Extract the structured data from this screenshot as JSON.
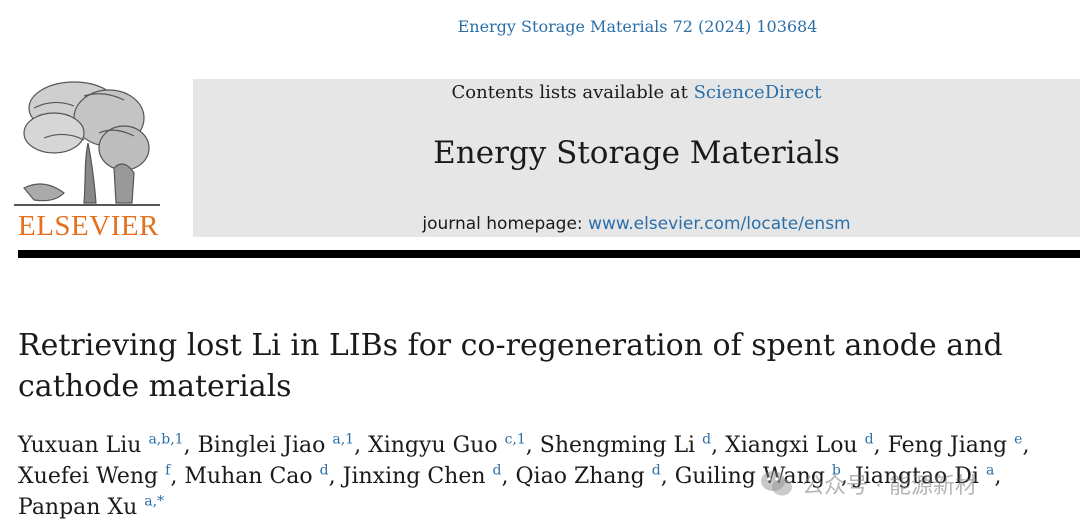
{
  "header": {
    "citation": "Energy Storage Materials 72 (2024) 103684"
  },
  "publisher": {
    "name": "ELSEVIER",
    "logo_icon": "elsevier-tree-icon"
  },
  "banner": {
    "contents_prefix": "Contents lists available at ",
    "contents_link": "ScienceDirect",
    "journal_title": "Energy Storage Materials",
    "homepage_prefix": "journal homepage: ",
    "homepage_link": "www.elsevier.com/locate/ensm"
  },
  "article": {
    "title_line1": "Retrieving lost Li in LIBs for co-regeneration of spent anode and",
    "title_line2": "cathode materials",
    "authors": [
      {
        "name": "Yuxuan Liu",
        "aff": "a,b,1",
        "sep": ", "
      },
      {
        "name": "Binglei Jiao",
        "aff": "a,1",
        "sep": ", "
      },
      {
        "name": "Xingyu Guo",
        "aff": "c,1",
        "sep": ", "
      },
      {
        "name": "Shengming Li",
        "aff": "d",
        "sep": ", "
      },
      {
        "name": "Xiangxi Lou",
        "aff": "d",
        "sep": ", "
      },
      {
        "name": "Feng Jiang",
        "aff": "e",
        "sep": ","
      },
      {
        "name": "Xuefei Weng",
        "aff": "f",
        "sep": ", "
      },
      {
        "name": "Muhan Cao",
        "aff": "d",
        "sep": ", "
      },
      {
        "name": "Jinxing Chen",
        "aff": "d",
        "sep": ", "
      },
      {
        "name": "Qiao Zhang",
        "aff": "d",
        "sep": ", "
      },
      {
        "name": "Guiling Wang",
        "aff": "b",
        "sep": ", "
      },
      {
        "name": "Jiangtao Di",
        "aff": "a",
        "sep": ","
      },
      {
        "name": "Panpan Xu",
        "aff": "a,*",
        "sep": ""
      }
    ]
  },
  "watermark": {
    "text": "公众号 · 能源新材",
    "icon": "wechat-icon"
  },
  "colors": {
    "link": "#2a6fa8",
    "elsevier_orange": "#e4701e",
    "banner_gray": "#e6e6e6"
  }
}
